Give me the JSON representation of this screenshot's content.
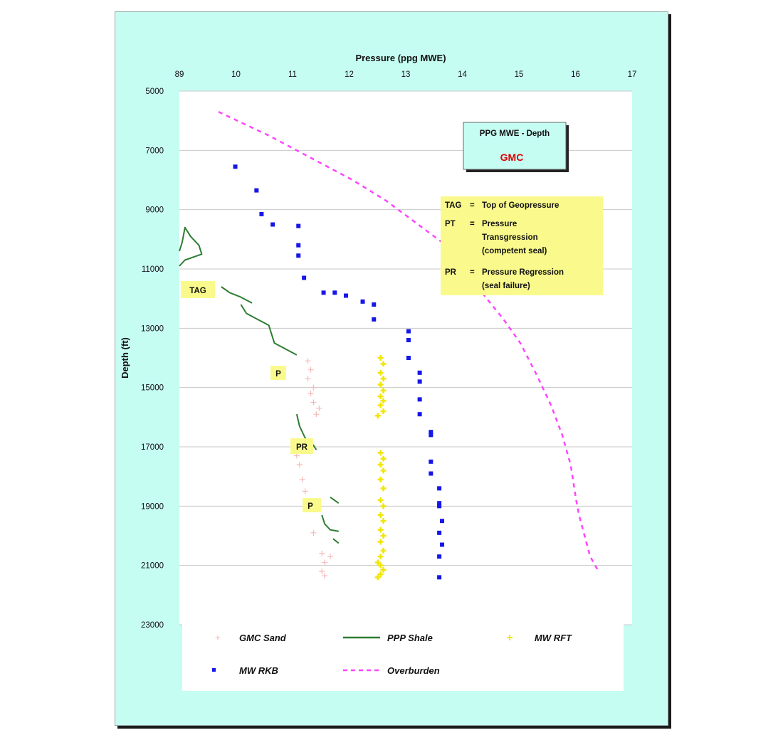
{
  "colors": {
    "frame_background": "#c6fdf3",
    "plot_background": "#ffffff",
    "gmc_sand": "#f6b8b8",
    "ppp_shale": "#2e7d32",
    "mw_rft": "#f2e600",
    "mw_rkb": "#1616e8",
    "overburden": "#ff44ff",
    "annotation_box": "#fafa8c",
    "title_box": "#c6fdf3",
    "gmc_text": "#dd0000"
  },
  "chart_data": {
    "type": "scatter",
    "xlabel": "Pressure (ppg MWE)",
    "ylabel": "Depth (ft)",
    "xlim": [
      8.9,
      17
    ],
    "ylim": [
      5000,
      23000
    ],
    "y_inverted": true,
    "x_axis_position": "top",
    "x_tick_labels": [
      "89",
      "10",
      "11",
      "12",
      "13",
      "14",
      "15",
      "16",
      "17"
    ],
    "y_tick_labels": [
      "5000",
      "7000",
      "9000",
      "11000",
      "13000",
      "15000",
      "17000",
      "19000",
      "21000",
      "23000"
    ],
    "horizontal_gridlines": true,
    "legend_position": "bottom",
    "series": [
      {
        "name": "GMC Sand",
        "marker": "plus",
        "points": [
          [
            11.2,
            14100
          ],
          [
            11.25,
            14400
          ],
          [
            11.2,
            14700
          ],
          [
            11.3,
            15000
          ],
          [
            11.25,
            15200
          ],
          [
            11.3,
            15500
          ],
          [
            11.4,
            15700
          ],
          [
            11.35,
            15900
          ],
          [
            11.0,
            17300
          ],
          [
            11.05,
            17600
          ],
          [
            11.1,
            18100
          ],
          [
            11.15,
            18500
          ],
          [
            11.3,
            19900
          ],
          [
            11.45,
            20600
          ],
          [
            11.6,
            20700
          ],
          [
            11.5,
            20900
          ],
          [
            11.45,
            21200
          ],
          [
            11.5,
            21350
          ]
        ]
      },
      {
        "name": "PPP Shale",
        "marker": "line",
        "segments": [
          [
            [
              8.9,
              10900
            ],
            [
              9.0,
              10700
            ],
            [
              9.3,
              10500
            ],
            [
              9.25,
              10200
            ],
            [
              9.1,
              9900
            ],
            [
              9.0,
              9600
            ],
            [
              8.95,
              10100
            ],
            [
              8.9,
              10400
            ]
          ],
          [
            [
              9.65,
              11600
            ],
            [
              9.8,
              11800
            ],
            [
              10.0,
              11950
            ],
            [
              10.2,
              12150
            ]
          ],
          [
            [
              10.0,
              12200
            ],
            [
              10.1,
              12500
            ],
            [
              10.3,
              12700
            ],
            [
              10.5,
              12900
            ],
            [
              10.55,
              13200
            ],
            [
              10.6,
              13500
            ],
            [
              10.8,
              13700
            ],
            [
              11.0,
              13900
            ]
          ],
          [
            [
              11.0,
              15900
            ],
            [
              11.05,
              16300
            ],
            [
              11.15,
              16700
            ],
            [
              11.3,
              16950
            ],
            [
              11.35,
              17100
            ]
          ],
          [
            [
              11.6,
              18700
            ],
            [
              11.75,
              18900
            ]
          ],
          [
            [
              11.45,
              19300
            ],
            [
              11.5,
              19600
            ],
            [
              11.6,
              19800
            ],
            [
              11.75,
              19850
            ]
          ],
          [
            [
              11.65,
              20100
            ],
            [
              11.75,
              20250
            ]
          ]
        ]
      },
      {
        "name": "MW RFT",
        "marker": "plus",
        "points": [
          [
            12.5,
            14000
          ],
          [
            12.55,
            14200
          ],
          [
            12.5,
            14500
          ],
          [
            12.55,
            14700
          ],
          [
            12.5,
            14900
          ],
          [
            12.55,
            15100
          ],
          [
            12.5,
            15300
          ],
          [
            12.55,
            15450
          ],
          [
            12.5,
            15600
          ],
          [
            12.55,
            15800
          ],
          [
            12.45,
            15950
          ],
          [
            12.5,
            17200
          ],
          [
            12.55,
            17400
          ],
          [
            12.5,
            17600
          ],
          [
            12.55,
            17800
          ],
          [
            12.5,
            18100
          ],
          [
            12.55,
            18400
          ],
          [
            12.5,
            18800
          ],
          [
            12.55,
            19000
          ],
          [
            12.5,
            19300
          ],
          [
            12.55,
            19500
          ],
          [
            12.5,
            19800
          ],
          [
            12.55,
            20000
          ],
          [
            12.5,
            20200
          ],
          [
            12.55,
            20500
          ],
          [
            12.5,
            20700
          ],
          [
            12.45,
            20900
          ],
          [
            12.5,
            21000
          ],
          [
            12.55,
            21150
          ],
          [
            12.5,
            21300
          ],
          [
            12.45,
            21400
          ]
        ]
      },
      {
        "name": "MW RKB",
        "marker": "dot",
        "points": [
          [
            9.9,
            7550
          ],
          [
            10.28,
            8350
          ],
          [
            10.37,
            9150
          ],
          [
            10.57,
            9500
          ],
          [
            11.03,
            9550
          ],
          [
            11.03,
            10200
          ],
          [
            11.03,
            10550
          ],
          [
            11.13,
            11300
          ],
          [
            11.48,
            11800
          ],
          [
            11.68,
            11800
          ],
          [
            11.88,
            11900
          ],
          [
            12.18,
            12100
          ],
          [
            12.38,
            12200
          ],
          [
            12.38,
            12700
          ],
          [
            13.0,
            13100
          ],
          [
            13.0,
            13400
          ],
          [
            13.0,
            14000
          ],
          [
            13.2,
            14500
          ],
          [
            13.2,
            14800
          ],
          [
            13.2,
            15400
          ],
          [
            13.2,
            15900
          ],
          [
            13.4,
            16500
          ],
          [
            13.4,
            16600
          ],
          [
            13.4,
            17500
          ],
          [
            13.4,
            17900
          ],
          [
            13.55,
            18400
          ],
          [
            13.55,
            18900
          ],
          [
            13.55,
            19000
          ],
          [
            13.6,
            19500
          ],
          [
            13.55,
            19900
          ],
          [
            13.6,
            20300
          ],
          [
            13.55,
            20700
          ],
          [
            13.55,
            21400
          ]
        ]
      },
      {
        "name": "Overburden",
        "marker": "dashed-line",
        "points": [
          [
            9.6,
            5700
          ],
          [
            10.5,
            6500
          ],
          [
            11.3,
            7300
          ],
          [
            12.0,
            8000
          ],
          [
            12.6,
            8700
          ],
          [
            13.1,
            9400
          ],
          [
            13.6,
            10100
          ],
          [
            14.1,
            11300
          ],
          [
            14.4,
            12000
          ],
          [
            14.7,
            12700
          ],
          [
            15.0,
            13500
          ],
          [
            15.3,
            14600
          ],
          [
            15.55,
            15600
          ],
          [
            15.75,
            16600
          ],
          [
            15.9,
            17600
          ],
          [
            16.0,
            18800
          ],
          [
            16.05,
            19300
          ],
          [
            16.15,
            20000
          ],
          [
            16.25,
            20700
          ],
          [
            16.4,
            21200
          ]
        ]
      }
    ]
  },
  "title_box": {
    "line1": "PPG MWE - Depth",
    "line2": "GMC"
  },
  "definitions_box": {
    "tag_key": "TAG",
    "tag_eq": "=",
    "tag_text": "Top of Geopressure",
    "pt_key": "PT",
    "pt_eq": "=",
    "pt_text1": "Pressure",
    "pt_text2": "Transgression",
    "pt_text3": "(competent seal)",
    "pr_key": "PR",
    "pr_eq": "=",
    "pr_text1": "Pressure Regression",
    "pr_text2": "(seal failure)"
  },
  "annotations": {
    "tag": "TAG",
    "p1": "P",
    "pr": "PR",
    "p2": "P"
  },
  "legend": {
    "gmc_sand": "GMC Sand",
    "ppp_shale": "PPP Shale",
    "mw_rft": "MW RFT",
    "mw_rkb": "MW RKB",
    "overburden": "Overburden"
  }
}
